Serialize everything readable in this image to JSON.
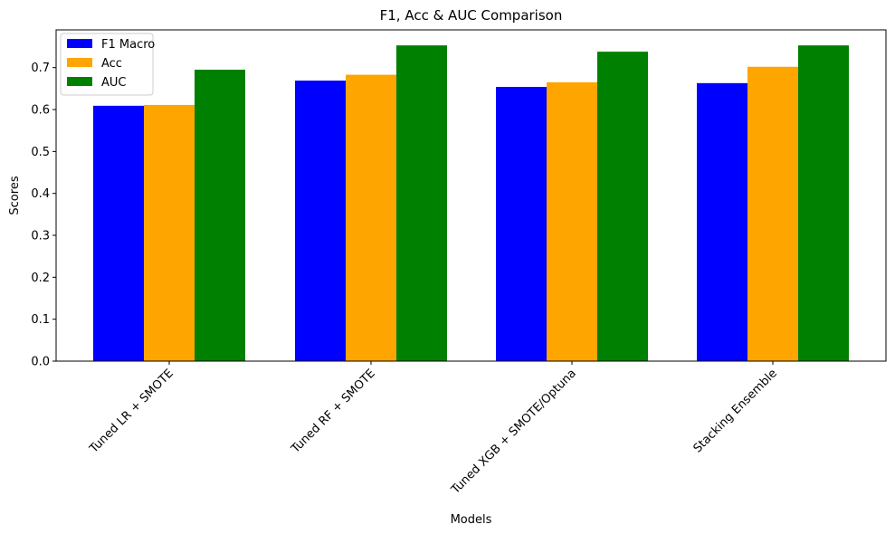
{
  "chart_data": {
    "type": "bar",
    "title": "F1, Acc & AUC Comparison",
    "xlabel": "Models",
    "ylabel": "Scores",
    "categories": [
      "Tuned LR + SMOTE",
      "Tuned RF + SMOTE",
      "Tuned XGB + SMOTE/Optuna",
      "Stacking Ensemble"
    ],
    "series": [
      {
        "name": "F1 Macro",
        "color": "#0000ff",
        "values": [
          0.609,
          0.669,
          0.654,
          0.663
        ]
      },
      {
        "name": "Acc",
        "color": "#ffa500",
        "values": [
          0.611,
          0.683,
          0.665,
          0.702
        ]
      },
      {
        "name": "AUC",
        "color": "#008000",
        "values": [
          0.695,
          0.753,
          0.738,
          0.753
        ]
      }
    ],
    "ylim": [
      0,
      0.79
    ],
    "yticks": [
      0.0,
      0.1,
      0.2,
      0.3,
      0.4,
      0.5,
      0.6,
      0.7
    ],
    "ytick_labels": [
      "0.0",
      "0.1",
      "0.2",
      "0.3",
      "0.4",
      "0.5",
      "0.6",
      "0.7"
    ],
    "grid": false,
    "legend_position": "top-left"
  }
}
